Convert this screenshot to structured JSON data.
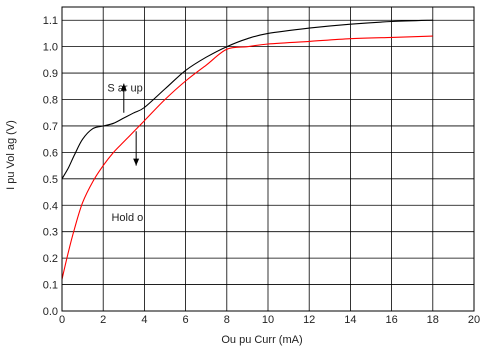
{
  "chart_data": {
    "type": "line",
    "xlabel": "Ou pu Curr      (mA)",
    "ylabel": "I pu Vol ag   (V)",
    "xlim": [
      0,
      20
    ],
    "ylim": [
      0,
      1.15
    ],
    "x_ticks": [
      0,
      2,
      4,
      6,
      8,
      10,
      12,
      14,
      16,
      18,
      20
    ],
    "y_ticks": [
      0.0,
      0.1,
      0.2,
      0.3,
      0.4,
      0.5,
      0.6,
      0.7,
      0.8,
      0.9,
      1.0,
      1.1
    ],
    "x_tick_labels": [
      "0",
      "2",
      "4",
      "6",
      "8",
      "10",
      "12",
      "14",
      "16",
      "18",
      "20"
    ],
    "y_tick_labels": [
      "0.0",
      "0.1",
      "0.2",
      "0.3",
      "0.4",
      "0.5",
      "0.6",
      "0.7",
      "0.8",
      "0.9",
      "1.0",
      "1.1"
    ],
    "grid": true,
    "series": [
      {
        "color": "#000000",
        "x": [
          0,
          0.3,
          0.6,
          1.0,
          1.5,
          2.0,
          2.5,
          3.0,
          3.5,
          4.0,
          5.0,
          6.0,
          7.0,
          8.0,
          9.0,
          10.0,
          12.0,
          14.0,
          16.0,
          18.0
        ],
        "y": [
          0.5,
          0.54,
          0.59,
          0.65,
          0.69,
          0.7,
          0.71,
          0.73,
          0.75,
          0.77,
          0.84,
          0.91,
          0.96,
          1.0,
          1.03,
          1.05,
          1.07,
          1.085,
          1.095,
          1.1
        ]
      },
      {
        "color": "#ff0000",
        "x": [
          0,
          0.3,
          0.6,
          1.0,
          1.5,
          2.0,
          2.5,
          3.0,
          3.5,
          4.0,
          5.0,
          6.0,
          7.0,
          8.0,
          9.0,
          10.0,
          12.0,
          14.0,
          16.0,
          18.0
        ],
        "y": [
          0.12,
          0.22,
          0.31,
          0.41,
          0.49,
          0.55,
          0.6,
          0.64,
          0.68,
          0.72,
          0.8,
          0.87,
          0.93,
          0.99,
          1.0,
          1.01,
          1.02,
          1.03,
          1.035,
          1.04
        ]
      }
    ],
    "annotations": [
      {
        "text": "S ar  up",
        "x": 2.2,
        "y": 0.83,
        "arrow": "up",
        "arrow_x": 3.0,
        "arrow_from_y": 0.75,
        "arrow_to_y": 0.86
      },
      {
        "text": "Hold o",
        "x": 2.4,
        "y": 0.34,
        "arrow": "down",
        "arrow_x": 3.6,
        "arrow_from_y": 0.68,
        "arrow_to_y": 0.55
      }
    ]
  }
}
